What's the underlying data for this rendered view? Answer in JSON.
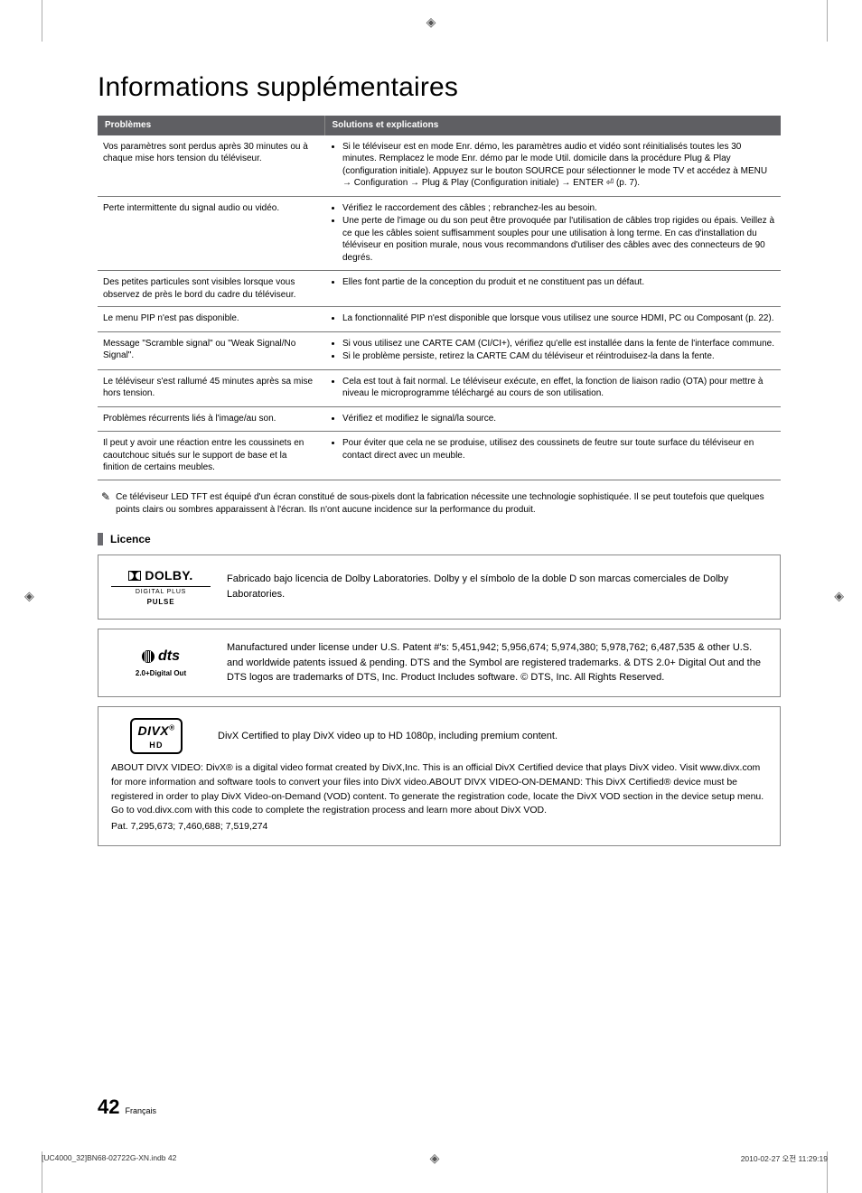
{
  "title": "Informations supplémentaires",
  "table": {
    "headers": [
      "Problèmes",
      "Solutions et explications"
    ],
    "rows": [
      {
        "problem": "Vos paramètres sont perdus après 30 minutes ou à chaque mise hors tension du téléviseur.",
        "solutions": [
          "Si le téléviseur est en mode Enr. démo, les paramètres audio et vidéo sont réinitialisés toutes les 30 minutes. Remplacez le mode Enr. démo par le mode Util. domicile dans la procédure Plug & Play (configuration initiale). Appuyez sur le bouton SOURCE pour sélectionner le mode TV et accédez à MENU → Configuration → Plug & Play (Configuration initiale) → ENTER ⏎ (p. 7)."
        ]
      },
      {
        "problem": "Perte intermittente du signal audio ou vidéo.",
        "solutions": [
          "Vérifiez le raccordement des câbles ; rebranchez-les au besoin.",
          "Une perte de l'image ou du son peut être provoquée par l'utilisation de câbles trop rigides ou épais. Veillez à ce que les câbles soient suffisamment souples pour une utilisation à long terme. En cas d'installation du téléviseur en position murale, nous vous recommandons d'utiliser des câbles avec des connecteurs de 90 degrés."
        ]
      },
      {
        "problem": "Des petites particules sont visibles lorsque vous observez de près le bord du cadre du téléviseur.",
        "solutions": [
          "Elles font partie de la conception du produit et ne constituent pas un défaut."
        ]
      },
      {
        "problem": "Le menu PIP n'est pas disponible.",
        "solutions": [
          "La fonctionnalité PIP n'est disponible que lorsque vous utilisez une source HDMI, PC ou Composant (p. 22)."
        ]
      },
      {
        "problem": "Message \"Scramble signal\" ou \"Weak Signal/No Signal\".",
        "solutions": [
          "Si vous utilisez une CARTE CAM (CI/CI+), vérifiez qu'elle est installée dans la fente de l'interface commune.",
          "Si le problème persiste, retirez la CARTE CAM du téléviseur et réintroduisez-la dans la fente."
        ]
      },
      {
        "problem": "Le téléviseur s'est rallumé 45 minutes après sa mise hors tension.",
        "solutions": [
          "Cela est tout à fait normal. Le téléviseur exécute, en effet, la fonction de liaison radio (OTA) pour mettre à niveau le microprogramme téléchargé au cours de son utilisation."
        ]
      },
      {
        "problem": "Problèmes récurrents liés à l'image/au son.",
        "solutions": [
          "Vérifiez et modifiez le signal/la source."
        ]
      },
      {
        "problem": "Il peut y avoir une réaction entre les coussinets en caoutchouc situés sur le support de base et la finition de certains meubles.",
        "solutions": [
          "Pour éviter que cela ne se produise, utilisez des coussinets de feutre sur toute surface du téléviseur en contact direct avec un meuble."
        ]
      }
    ]
  },
  "note": "Ce téléviseur LED TFT est équipé d'un écran constitué de sous-pixels dont la fabrication nécessite une technologie sophistiquée. Il se peut toutefois que quelques points clairs ou sombres apparaissent à l'écran. Ils n'ont aucune incidence sur la performance du produit.",
  "licence": {
    "heading": "Licence",
    "dolby": {
      "brand": "DOLBY.",
      "caption1": "DIGITAL PLUS",
      "caption2": "PULSE",
      "text": "Fabricado bajo licencia de Dolby Laboratories. Dolby y el símbolo de la doble D son marcas comerciales de Dolby Laboratories."
    },
    "dts": {
      "brand": "dts",
      "caption": "2.0+Digital Out",
      "text": "Manufactured under license under U.S. Patent #'s: 5,451,942; 5,956,674; 5,974,380; 5,978,762; 6,487,535 & other U.S. and worldwide patents issued & pending. DTS and the Symbol are registered trademarks. & DTS 2.0+ Digital Out and the DTS logos are trademarks of DTS, Inc. Product Includes software. © DTS, Inc. All Rights Reserved."
    },
    "divx": {
      "brand": "DIVX",
      "sub": "HD",
      "text": "DivX Certified to play DivX video up to HD 1080p, including premium content.",
      "about": "ABOUT DIVX VIDEO: DivX® is a digital video format created by DivX,Inc. This is an official DivX Certified device that plays DivX video. Visit www.divx.com for more information and software tools to convert your files into DivX video.ABOUT DIVX VIDEO-ON-DEMAND: This DivX Certified® device must be registered in order to play DivX Video-on-Demand (VOD) content. To generate the registration code, locate the DivX VOD section in the device setup menu. Go to vod.divx.com with this code to complete the registration process and learn more about DivX VOD.",
      "patents": "Pat. 7,295,673; 7,460,688; 7,519,274"
    }
  },
  "footer": {
    "pageNumber": "42",
    "language": "Français",
    "leftMeta": "[UC4000_32]BN68-02722G-XN.indb   42",
    "rightMeta": "2010-02-27   오전 11:29:19"
  },
  "colors": {
    "headerBg": "#5f5f63",
    "border": "#777777",
    "text": "#000000"
  }
}
